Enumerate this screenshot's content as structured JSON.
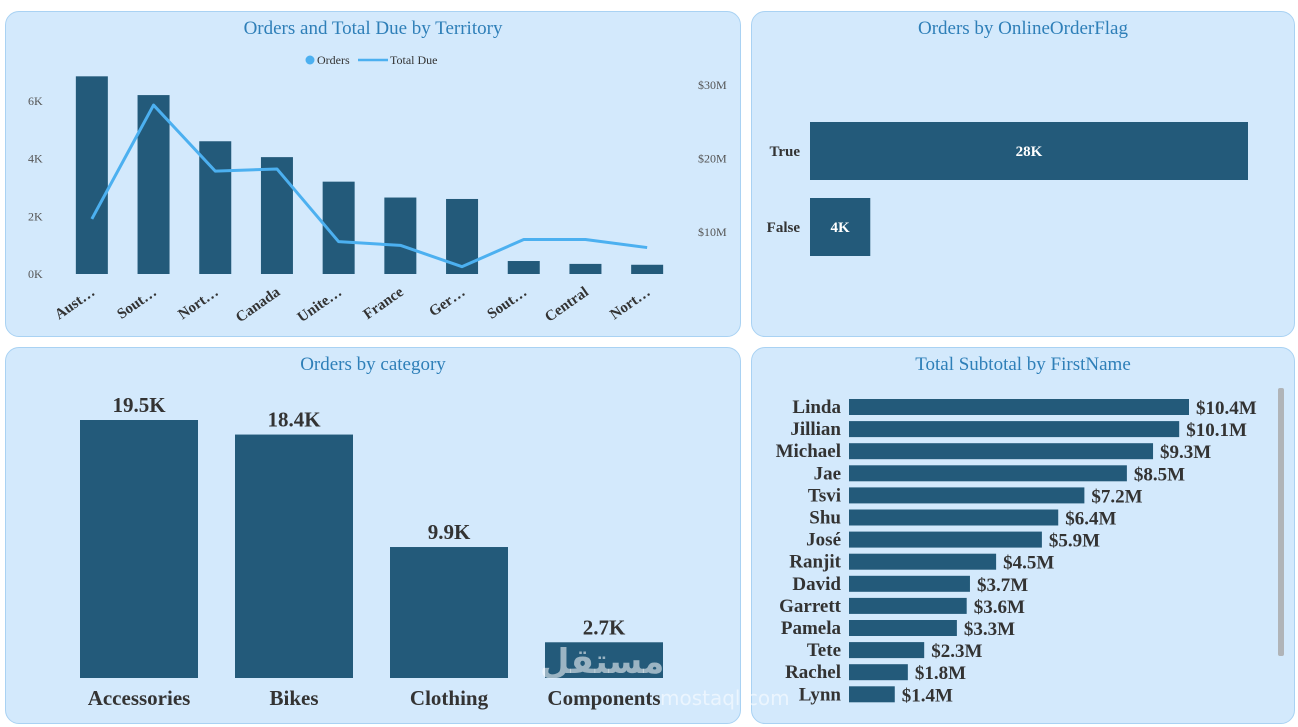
{
  "colors": {
    "bar": "#235a7a",
    "line": "#4cb0f0",
    "title": "#2e7fb8",
    "panel_bg": "#d3e9fc",
    "label_dark": "#333333"
  },
  "chart_data": [
    {
      "id": "territory",
      "type": "bar",
      "title": "Orders and Total Due by Territory",
      "legend": {
        "placement": "top-center",
        "entries": [
          "Orders",
          "Total Due"
        ]
      },
      "categories": [
        "Aust…",
        "Sout…",
        "Nort…",
        "Canada",
        "Unite…",
        "France",
        "Ger…",
        "Sout…",
        "Central",
        "Nort…"
      ],
      "series": [
        {
          "name": "Orders",
          "kind": "bar",
          "axis": "left",
          "values": [
            6850,
            6200,
            4600,
            4050,
            3200,
            2650,
            2600,
            450,
            350,
            320
          ]
        },
        {
          "name": "Total Due",
          "kind": "line",
          "axis": "right",
          "values": [
            11800000,
            27300000,
            18300000,
            18600000,
            8700000,
            8200000,
            5300000,
            9000000,
            9000000,
            7900000
          ]
        }
      ],
      "y_left": {
        "ticks": [
          "0K",
          "2K",
          "4K",
          "6K"
        ],
        "tick_values": [
          0,
          2000,
          4000,
          6000
        ],
        "range": [
          0,
          7000
        ]
      },
      "y_right": {
        "ticks": [
          "$10M",
          "$20M",
          "$30M"
        ],
        "tick_values": [
          10000000,
          20000000,
          30000000
        ],
        "range": [
          4300000,
          31800000
        ]
      }
    },
    {
      "id": "online",
      "type": "bar",
      "orientation": "horizontal",
      "title": "Orders by OnlineOrderFlag",
      "categories": [
        "True",
        "False"
      ],
      "values": [
        27659,
        3806
      ],
      "labels": [
        "28K",
        "4K"
      ],
      "range": [
        0,
        27659
      ]
    },
    {
      "id": "category",
      "type": "bar",
      "title": "Orders by category",
      "categories": [
        "Accessories",
        "Bikes",
        "Clothing",
        "Components"
      ],
      "values": [
        19500,
        18400,
        9900,
        2700
      ],
      "labels": [
        "19.5K",
        "18.4K",
        "9.9K",
        "2.7K"
      ],
      "range": [
        0,
        19500
      ]
    },
    {
      "id": "firstname",
      "type": "bar",
      "orientation": "horizontal",
      "title": "Total Subtotal by FirstName",
      "categories": [
        "Linda",
        "Jillian",
        "Michael",
        "Jae",
        "Tsvi",
        "Shu",
        "José",
        "Ranjit",
        "David",
        "Garrett",
        "Pamela",
        "Tete",
        "Rachel",
        "Lynn"
      ],
      "values": [
        10.4,
        10.1,
        9.3,
        8.5,
        7.2,
        6.4,
        5.9,
        4.5,
        3.7,
        3.6,
        3.3,
        2.3,
        1.8,
        1.4
      ],
      "labels": [
        "$10.4M",
        "$10.1M",
        "$9.3M",
        "$8.5M",
        "$7.2M",
        "$6.4M",
        "$5.9M",
        "$4.5M",
        "$3.7M",
        "$3.6M",
        "$3.3M",
        "$2.3M",
        "$1.8M",
        "$1.4M"
      ],
      "range": [
        0,
        10.4
      ]
    }
  ],
  "watermark": {
    "text": "مستقل",
    "sub": "mostaql.com"
  }
}
